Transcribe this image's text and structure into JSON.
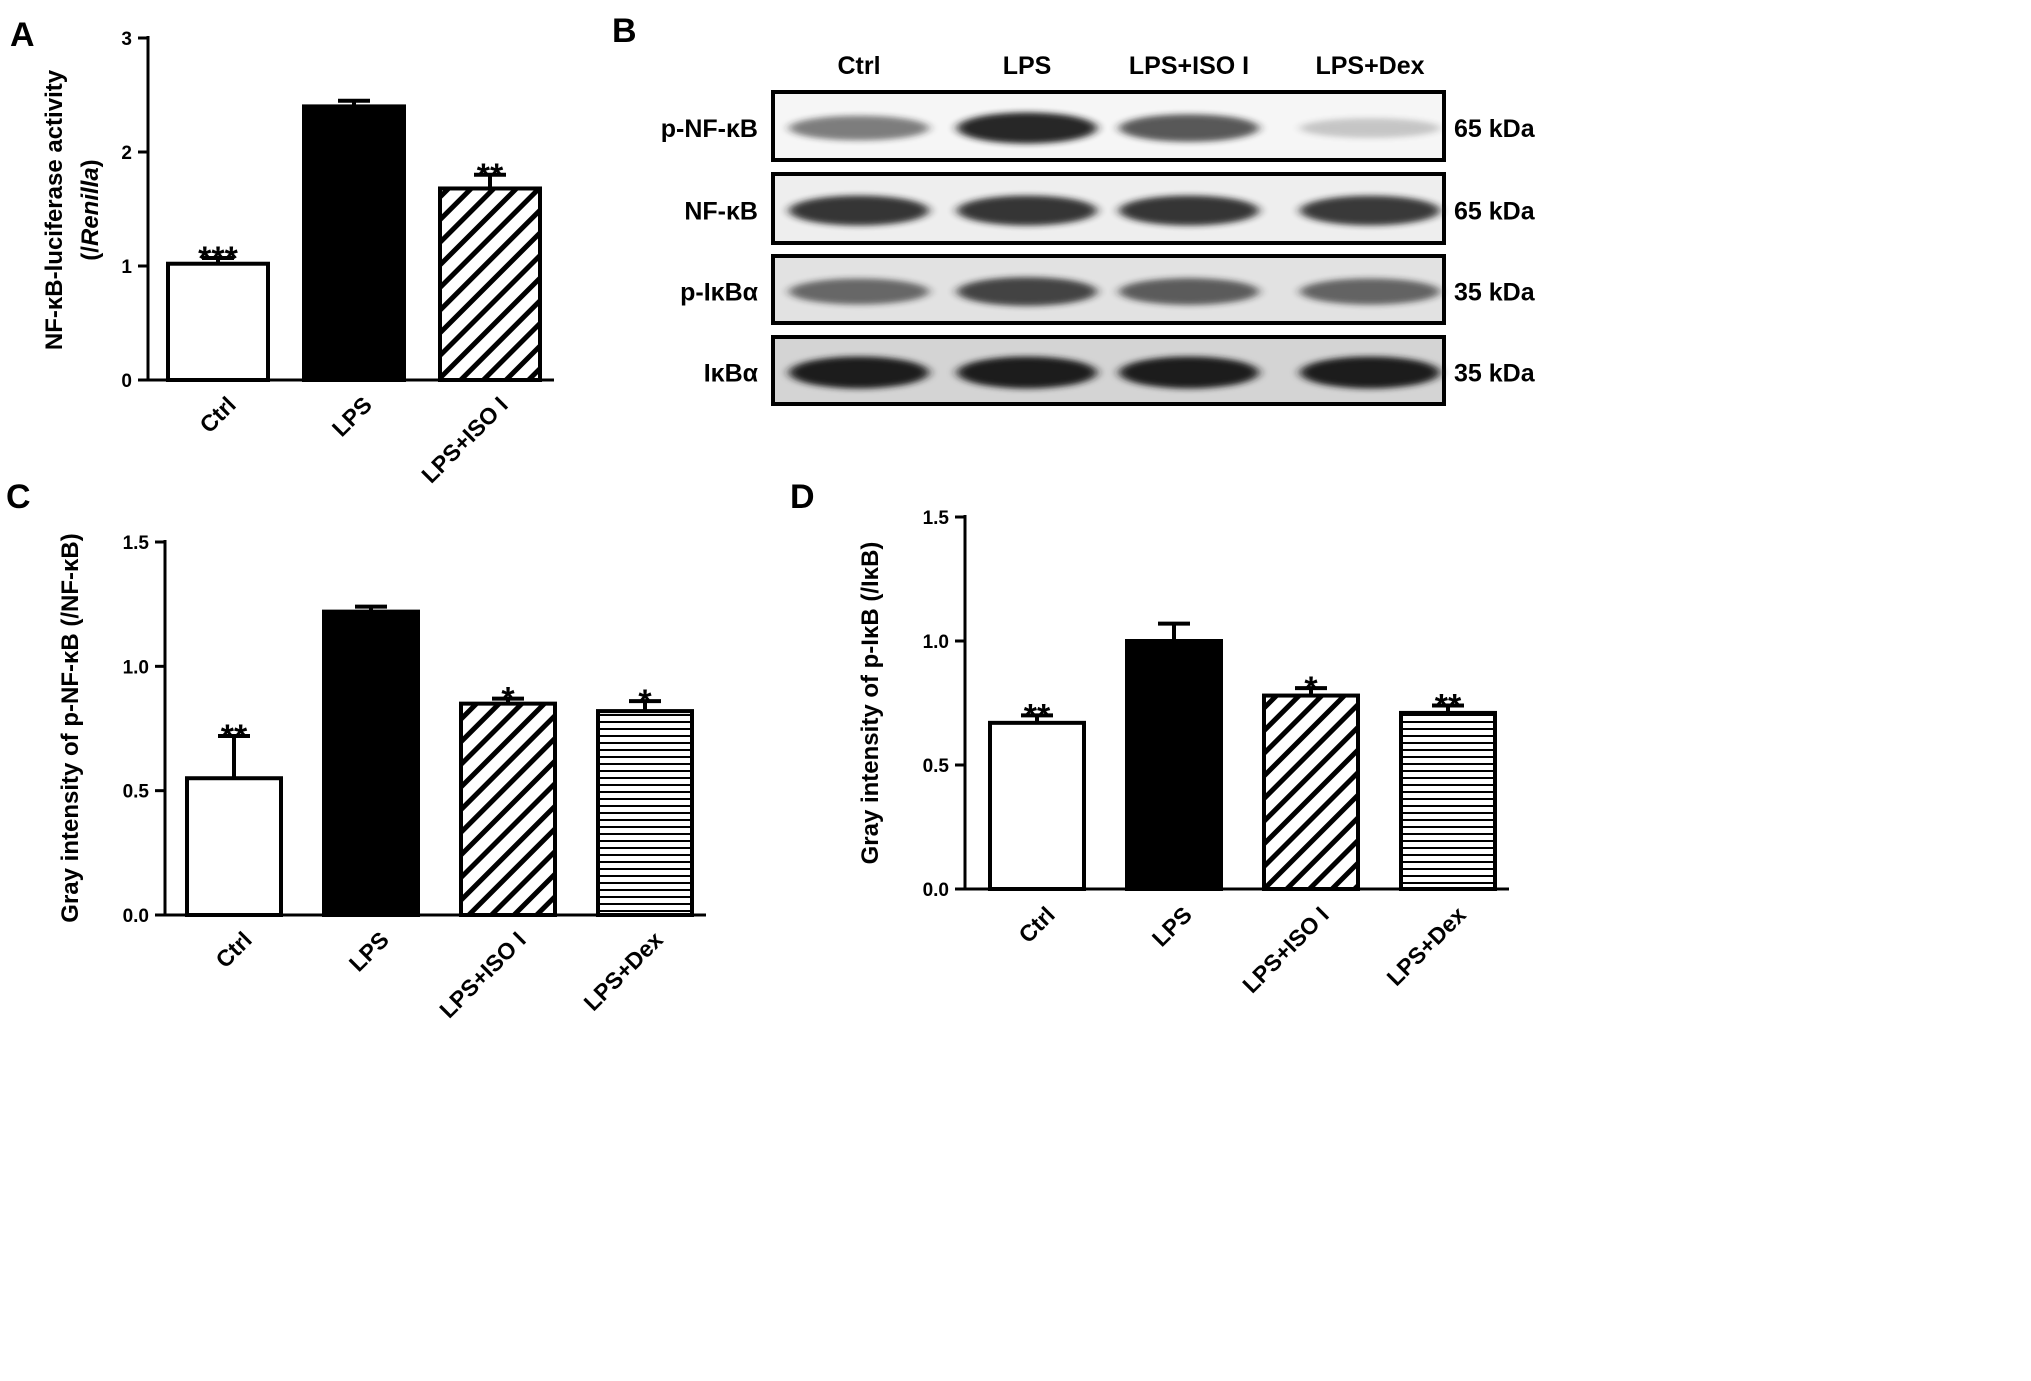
{
  "panels": {
    "A": "A",
    "B": "B",
    "C": "C",
    "D": "D"
  },
  "chart_data": [
    {
      "panel": "A",
      "type": "bar",
      "categories": [
        "Ctrl",
        "LPS",
        "LPS+ISO I"
      ],
      "values": [
        1.02,
        2.4,
        1.68
      ],
      "errors": [
        0.05,
        0.05,
        0.12
      ],
      "significance": [
        "***",
        "",
        "**"
      ],
      "fills": [
        "white",
        "black",
        "diagonal"
      ],
      "ylabel_lines": [
        "NF-κB-luciferase activity",
        "(/Renilla)"
      ],
      "yticks": [
        0,
        1,
        2,
        3
      ],
      "ylim": [
        0,
        3
      ],
      "xlabel": "",
      "grid": false
    },
    {
      "panel": "C",
      "type": "bar",
      "categories": [
        "Ctrl",
        "LPS",
        "LPS+ISO I",
        "LPS+Dex"
      ],
      "values": [
        0.55,
        1.22,
        0.85,
        0.82
      ],
      "errors": [
        0.17,
        0.02,
        0.02,
        0.04
      ],
      "significance": [
        "**",
        "",
        "*",
        "*"
      ],
      "fills": [
        "white",
        "black",
        "diagonal",
        "horizontal"
      ],
      "ylabel_lines": [
        "Gray intensity of p-NF-κB (/NF-κB)"
      ],
      "yticks": [
        "0.0",
        "0.5",
        "1.0",
        "1.5"
      ],
      "ylim": [
        0,
        1.5
      ],
      "xlabel": "",
      "grid": false
    },
    {
      "panel": "D",
      "type": "bar",
      "categories": [
        "Ctrl",
        "LPS",
        "LPS+ISO I",
        "LPS+Dex"
      ],
      "values": [
        0.67,
        1.0,
        0.78,
        0.71
      ],
      "errors": [
        0.03,
        0.07,
        0.03,
        0.03
      ],
      "significance": [
        "**",
        "",
        "*",
        "**"
      ],
      "fills": [
        "white",
        "black",
        "diagonal",
        "horizontal"
      ],
      "ylabel_lines": [
        "Gray intensity of p-IκB (/IκB)"
      ],
      "yticks": [
        "0.0",
        "0.5",
        "1.0",
        "1.5"
      ],
      "ylim": [
        0,
        1.5
      ],
      "xlabel": "",
      "grid": false
    }
  ],
  "blot": {
    "columns": [
      "Ctrl",
      "LPS",
      "LPS+ISO I",
      "LPS+Dex"
    ],
    "rows": [
      {
        "label": "p-NF-κB",
        "size": "65 kDa",
        "intensities": [
          0.55,
          0.95,
          0.72,
          0.22
        ],
        "background": "#f6f6f6"
      },
      {
        "label": "NF-κB",
        "size": "65 kDa",
        "intensities": [
          0.88,
          0.88,
          0.88,
          0.86
        ],
        "background": "#eeeeee"
      },
      {
        "label": "p-IκBα",
        "size": "35 kDa",
        "intensities": [
          0.62,
          0.8,
          0.68,
          0.64
        ],
        "background": "#e2e2e2"
      },
      {
        "label": "IκBα",
        "size": "35 kDa",
        "intensities": [
          1.0,
          1.0,
          1.0,
          1.0
        ],
        "background": "#d4d4d4"
      }
    ]
  }
}
